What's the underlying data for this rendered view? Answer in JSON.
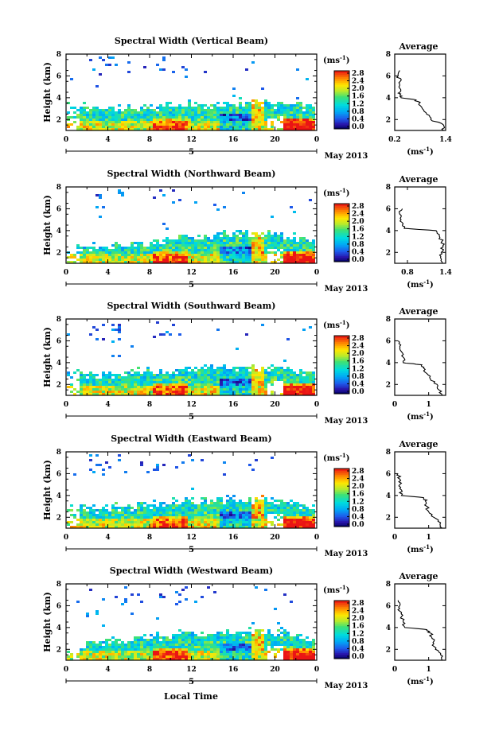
{
  "shared": {
    "ylabel": "Height (km)",
    "main_yticks": [
      "2",
      "4",
      "6",
      "8"
    ],
    "main_xticks": [
      "0",
      "4",
      "8",
      "12",
      "16",
      "20",
      "0"
    ],
    "day_label": "5",
    "month_label": "May 2013",
    "xlabel": "Local Time",
    "colorbar_unit": "(ms-1)",
    "avg_title": "Average",
    "avg_yticks": [
      "2",
      "4",
      "6",
      "8"
    ],
    "avg_xlabel": "(ms-1)"
  },
  "panels": [
    {
      "title": "Spectral Width (Vertical Beam)",
      "cbar_ticks": [
        "0.0",
        "0.4",
        "0.8",
        "1.2",
        "1.6",
        "2.0",
        "2.4",
        "2.8"
      ],
      "avg_xticks": [
        "0.2",
        "1.4"
      ],
      "avg_xlim": [
        0.2,
        1.4
      ]
    },
    {
      "title": "Spectral Width (Northward Beam)",
      "cbar_ticks": [
        "0.0",
        "0.4",
        "0.8",
        "1.2",
        "1.6",
        "2.0",
        "2.4",
        "2.8"
      ],
      "avg_xticks": [
        "0.8",
        "1.4"
      ],
      "avg_xlim": [
        0.6,
        1.4
      ]
    },
    {
      "title": "Spectral Width (Southward Beam)",
      "cbar_ticks": [
        "0.0",
        "0.4",
        "0.8",
        "1.2",
        "1.6",
        "2.0",
        "2.4",
        "2.8"
      ],
      "avg_xticks": [
        "0",
        "1"
      ],
      "avg_xlim": [
        0,
        1.5
      ]
    },
    {
      "title": "Spectral Width (Eastward Beam)",
      "cbar_ticks": [
        "0.0",
        "0.4",
        "0.8",
        "1.2",
        "1.6",
        "2.0",
        "2.4",
        "2.8"
      ],
      "avg_xticks": [
        "0",
        "1"
      ],
      "avg_xlim": [
        0,
        1.5
      ]
    },
    {
      "title": "Spectral Width (Westward Beam)",
      "cbar_ticks": [
        "0.0",
        "0.4",
        "0.8",
        "1.2",
        "1.6",
        "2.0",
        "2.4",
        "2.8"
      ],
      "avg_xticks": [
        "0",
        "1"
      ],
      "avg_xlim": [
        0,
        1.5
      ]
    }
  ],
  "chart_data": [
    {
      "type": "heatmap",
      "title": "Spectral Width (Vertical Beam)",
      "xlabel": "",
      "ylabel": "Height (km)",
      "xlim": [
        0,
        24
      ],
      "ylim": [
        1,
        8
      ],
      "clim": [
        0,
        2.8
      ],
      "colormap": "rainbow",
      "x_ticks": [
        "0",
        "4",
        "8",
        "12",
        "16",
        "20",
        "0"
      ],
      "y_ticks": [
        "2",
        "4",
        "6",
        "8"
      ],
      "colorbar_label": "(ms-1)",
      "colorbar_ticks": [
        "0.0",
        "0.4",
        "0.8",
        "1.2",
        "1.6",
        "2.0",
        "2.4",
        "2.8"
      ],
      "blend_top_km": [
        3.6,
        3.4,
        3.3,
        3.4,
        3.4,
        3.6,
        3.7,
        3.8,
        3.9,
        3.8,
        3.6,
        3.2
      ],
      "sparse_upper_layer": true,
      "average_profile": {
        "xlim": [
          0.2,
          1.4
        ],
        "x_ticks": [
          "0.2",
          "1.4"
        ],
        "ylim": [
          1,
          8
        ],
        "height": [
          1.0,
          1.5,
          2.0,
          2.5,
          3.0,
          3.5,
          3.8,
          4.0,
          4.2,
          4.5,
          5.0,
          5.5,
          6.0,
          6.5
        ],
        "width": [
          1.35,
          1.35,
          1.05,
          0.95,
          0.85,
          0.78,
          0.7,
          0.35,
          0.33,
          0.32,
          0.3,
          0.33,
          0.28,
          0.32
        ]
      }
    },
    {
      "type": "heatmap",
      "title": "Spectral Width (Northward Beam)",
      "xlabel": "",
      "ylabel": "Height (km)",
      "xlim": [
        0,
        24
      ],
      "ylim": [
        1,
        8
      ],
      "clim": [
        0,
        2.8
      ],
      "colormap": "rainbow",
      "x_ticks": [
        "0",
        "4",
        "8",
        "12",
        "16",
        "20",
        "0"
      ],
      "y_ticks": [
        "2",
        "4",
        "6",
        "8"
      ],
      "colorbar_label": "(ms-1)",
      "colorbar_ticks": [
        "0.0",
        "0.4",
        "0.8",
        "1.2",
        "1.6",
        "2.0",
        "2.4",
        "2.8"
      ],
      "blend_top_km": [
        2.6,
        2.8,
        2.9,
        3.1,
        3.3,
        3.7,
        3.9,
        4.0,
        4.1,
        4.0,
        3.6,
        3.1
      ],
      "sparse_upper_layer": true,
      "average_profile": {
        "xlim": [
          0.6,
          1.4
        ],
        "x_ticks": [
          "0.8",
          "1.4"
        ],
        "ylim": [
          1,
          8
        ],
        "height": [
          1.0,
          1.5,
          2.0,
          2.5,
          3.0,
          3.5,
          4.0,
          4.2,
          4.5,
          5.0,
          5.5,
          6.0
        ],
        "width": [
          1.35,
          1.32,
          1.33,
          1.36,
          1.34,
          1.3,
          1.25,
          0.75,
          0.72,
          0.7,
          0.68,
          0.72
        ]
      }
    },
    {
      "type": "heatmap",
      "title": "Spectral Width (Southward Beam)",
      "xlabel": "",
      "ylabel": "Height (km)",
      "xlim": [
        0,
        24
      ],
      "ylim": [
        1,
        8
      ],
      "clim": [
        0,
        2.8
      ],
      "colormap": "rainbow",
      "x_ticks": [
        "0",
        "4",
        "8",
        "12",
        "16",
        "20",
        "0"
      ],
      "y_ticks": [
        "2",
        "4",
        "6",
        "8"
      ],
      "colorbar_label": "(ms-1)",
      "colorbar_ticks": [
        "0.0",
        "0.4",
        "0.8",
        "1.2",
        "1.6",
        "2.0",
        "2.4",
        "2.8"
      ],
      "blend_top_km": [
        3.3,
        3.2,
        3.3,
        3.4,
        3.5,
        3.7,
        3.8,
        3.9,
        4.0,
        3.9,
        3.6,
        3.2
      ],
      "sparse_upper_layer": true,
      "average_profile": {
        "xlim": [
          0,
          1.5
        ],
        "x_ticks": [
          "0",
          "1"
        ],
        "ylim": [
          1,
          8
        ],
        "height": [
          1.0,
          1.5,
          2.0,
          2.5,
          3.0,
          3.5,
          3.8,
          4.0,
          4.5,
          5.0,
          5.5,
          6.0
        ],
        "width": [
          1.4,
          1.3,
          1.25,
          1.05,
          0.95,
          0.85,
          0.8,
          0.25,
          0.25,
          0.2,
          0.15,
          0.1
        ]
      }
    },
    {
      "type": "heatmap",
      "title": "Spectral Width (Eastward Beam)",
      "xlabel": "",
      "ylabel": "Height (km)",
      "xlim": [
        0,
        24
      ],
      "ylim": [
        1,
        8
      ],
      "clim": [
        0,
        2.8
      ],
      "colormap": "rainbow",
      "x_ticks": [
        "0",
        "4",
        "8",
        "12",
        "16",
        "20",
        "0"
      ],
      "y_ticks": [
        "2",
        "4",
        "6",
        "8"
      ],
      "colorbar_label": "(ms-1)",
      "colorbar_ticks": [
        "0.0",
        "0.4",
        "0.8",
        "1.2",
        "1.6",
        "2.0",
        "2.4",
        "2.8"
      ],
      "blend_top_km": [
        3.2,
        3.1,
        3.2,
        3.3,
        3.5,
        3.7,
        3.8,
        3.9,
        4.0,
        3.9,
        3.6,
        3.1
      ],
      "sparse_upper_layer": true,
      "average_profile": {
        "xlim": [
          0,
          1.5
        ],
        "x_ticks": [
          "0",
          "1"
        ],
        "ylim": [
          1,
          8
        ],
        "height": [
          1.0,
          1.5,
          2.0,
          2.5,
          3.0,
          3.5,
          3.8,
          4.0,
          4.5,
          5.0,
          5.5,
          6.0
        ],
        "width": [
          1.4,
          1.35,
          1.15,
          1.0,
          0.95,
          0.9,
          0.85,
          0.2,
          0.2,
          0.15,
          0.15,
          0.1
        ]
      }
    },
    {
      "type": "heatmap",
      "title": "Spectral Width (Westward Beam)",
      "xlabel": "Local Time",
      "ylabel": "Height (km)",
      "xlim": [
        0,
        24
      ],
      "ylim": [
        1,
        8
      ],
      "clim": [
        0,
        2.8
      ],
      "colormap": "rainbow",
      "x_ticks": [
        "0",
        "4",
        "8",
        "12",
        "16",
        "20",
        "0"
      ],
      "y_ticks": [
        "2",
        "4",
        "6",
        "8"
      ],
      "colorbar_label": "(ms-1)",
      "colorbar_ticks": [
        "0.0",
        "0.4",
        "0.8",
        "1.2",
        "1.6",
        "2.0",
        "2.4",
        "2.8"
      ],
      "blend_top_km": [
        2.7,
        2.9,
        3.1,
        3.3,
        3.5,
        3.7,
        3.8,
        3.9,
        4.0,
        3.9,
        3.5,
        3.0
      ],
      "sparse_upper_layer": true,
      "average_profile": {
        "xlim": [
          0,
          1.5
        ],
        "x_ticks": [
          "0",
          "1"
        ],
        "ylim": [
          1,
          8
        ],
        "height": [
          1.0,
          1.5,
          2.0,
          2.5,
          3.0,
          3.5,
          3.8,
          4.0,
          4.5,
          5.0,
          5.5,
          6.0,
          6.5
        ],
        "width": [
          1.4,
          1.35,
          1.2,
          1.15,
          1.1,
          1.05,
          0.95,
          0.3,
          0.25,
          0.2,
          0.15,
          0.15,
          0.1
        ]
      }
    }
  ]
}
